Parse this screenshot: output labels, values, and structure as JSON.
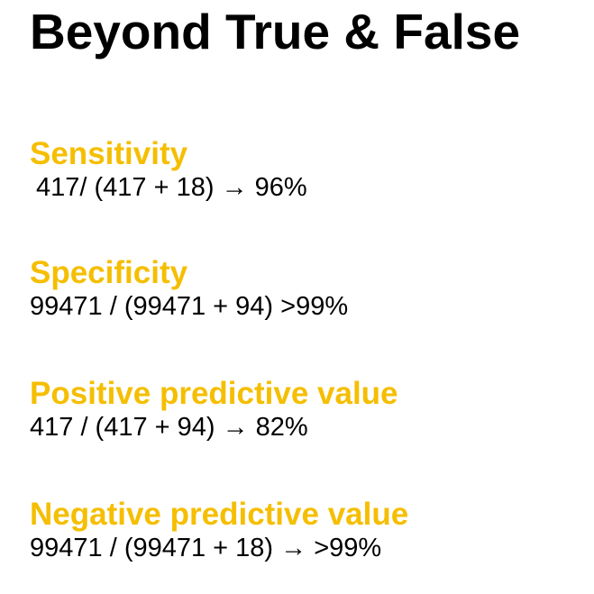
{
  "slide": {
    "title": "Beyond True & False",
    "accent_color": "#F5BE00",
    "metrics": [
      {
        "heading": "Sensitivity",
        "formula": "417/ (417 + 18) → 96%"
      },
      {
        "heading": "Specificity",
        "formula": "99471 / (99471 + 94) >99%"
      },
      {
        "heading": "Positive predictive value",
        "formula": "417 / (417 + 94) → 82%"
      },
      {
        "heading": "Negative predictive value",
        "formula": "99471 / (99471 + 18) → >99%"
      }
    ]
  }
}
